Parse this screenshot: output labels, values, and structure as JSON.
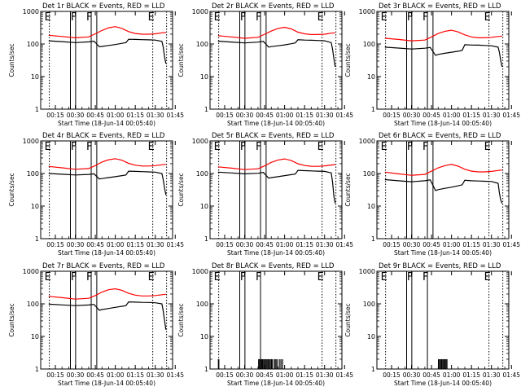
{
  "figure": {
    "ylabel": "Counts/sec",
    "xlabel": "Start Time (18-Jun-14 00:05:40)",
    "time_ticks": [
      "00:15",
      "00:30",
      "00:45",
      "01:00",
      "01:15",
      "01:30",
      "01:45"
    ],
    "log_ticks": [
      "1",
      "10",
      "100",
      "1000"
    ],
    "colors": {
      "events": "#000000",
      "lld": "#ff0000"
    }
  },
  "chart_data": [
    {
      "type": "line",
      "title": "Det 1r BLACK = Events, RED = LLD",
      "x_range_min": [
        4,
        103
      ],
      "y_range": [
        1,
        1000
      ],
      "y_scale": "log",
      "time_markers": [
        {
          "t": 10.5,
          "label": "E"
        },
        {
          "t": 26.3,
          "label": ""
        },
        {
          "t": 30.2,
          "label": "F"
        },
        {
          "t": 41.9,
          "label": "F"
        },
        {
          "t": 46.1,
          "label": ""
        },
        {
          "t": 88.1,
          "label": "E"
        },
        {
          "t": 98.5,
          "label": ""
        }
      ],
      "series": [
        {
          "name": "Events",
          "color": "#000000",
          "t": [
            10,
            20,
            30,
            40,
            44,
            48,
            50,
            55,
            60,
            65,
            68,
            70,
            75,
            80,
            85,
            90,
            95,
            96,
            97,
            98
          ],
          "values": [
            125,
            118,
            110,
            116,
            122,
            82,
            84,
            90,
            96,
            105,
            110,
            140,
            138,
            136,
            134,
            132,
            120,
            80,
            40,
            25
          ]
        },
        {
          "name": "LLD",
          "color": "#ff0000",
          "t": [
            10,
            20,
            30,
            40,
            45,
            50,
            55,
            60,
            65,
            70,
            75,
            80,
            85,
            90,
            95,
            98
          ],
          "values": [
            185,
            170,
            155,
            165,
            205,
            260,
            315,
            340,
            300,
            240,
            210,
            200,
            200,
            205,
            220,
            225
          ]
        }
      ]
    },
    {
      "type": "line",
      "title": "Det 2r BLACK = Events, RED = LLD",
      "x_range_min": [
        4,
        103
      ],
      "y_range": [
        1,
        1000
      ],
      "y_scale": "log",
      "time_markers": [
        {
          "t": 10.5,
          "label": "E"
        },
        {
          "t": 26.3,
          "label": ""
        },
        {
          "t": 30.2,
          "label": "F"
        },
        {
          "t": 41.9,
          "label": "F"
        },
        {
          "t": 46.1,
          "label": ""
        },
        {
          "t": 88.1,
          "label": "E"
        },
        {
          "t": 98.5,
          "label": ""
        }
      ],
      "series": [
        {
          "name": "Events",
          "color": "#000000",
          "t": [
            10,
            20,
            30,
            40,
            44,
            48,
            50,
            55,
            60,
            65,
            68,
            70,
            75,
            80,
            85,
            90,
            95,
            96,
            97,
            98
          ],
          "values": [
            122,
            115,
            108,
            114,
            120,
            80,
            83,
            88,
            94,
            102,
            108,
            135,
            132,
            130,
            128,
            125,
            110,
            70,
            35,
            20
          ]
        },
        {
          "name": "LLD",
          "color": "#ff0000",
          "t": [
            10,
            20,
            30,
            40,
            45,
            50,
            55,
            60,
            65,
            70,
            75,
            80,
            85,
            90,
            95,
            98
          ],
          "values": [
            180,
            165,
            150,
            160,
            200,
            250,
            300,
            325,
            290,
            230,
            205,
            195,
            195,
            200,
            215,
            220
          ]
        }
      ]
    },
    {
      "type": "line",
      "title": "Det 3r BLACK = Events, RED = LLD",
      "x_range_min": [
        4,
        103
      ],
      "y_range": [
        1,
        1000
      ],
      "y_scale": "log",
      "time_markers": [
        {
          "t": 10.5,
          "label": "E"
        },
        {
          "t": 26.3,
          "label": ""
        },
        {
          "t": 30.2,
          "label": "F"
        },
        {
          "t": 41.9,
          "label": "F"
        },
        {
          "t": 46.1,
          "label": ""
        },
        {
          "t": 88.1,
          "label": "E"
        },
        {
          "t": 98.5,
          "label": ""
        }
      ],
      "series": [
        {
          "name": "Events",
          "color": "#000000",
          "t": [
            10,
            20,
            30,
            40,
            44,
            48,
            50,
            55,
            60,
            65,
            68,
            70,
            75,
            80,
            85,
            90,
            95,
            96,
            97,
            98
          ],
          "values": [
            80,
            75,
            70,
            74,
            78,
            45,
            48,
            52,
            56,
            60,
            64,
            95,
            93,
            92,
            90,
            88,
            80,
            55,
            30,
            20
          ]
        },
        {
          "name": "LLD",
          "color": "#ff0000",
          "t": [
            10,
            20,
            30,
            40,
            45,
            50,
            55,
            60,
            65,
            70,
            75,
            80,
            85,
            90,
            95,
            98
          ],
          "values": [
            150,
            138,
            125,
            132,
            165,
            210,
            245,
            265,
            235,
            190,
            165,
            155,
            155,
            160,
            170,
            175
          ]
        }
      ]
    },
    {
      "type": "line",
      "title": "Det 4r BLACK = Events, RED = LLD",
      "x_range_min": [
        4,
        103
      ],
      "y_range": [
        1,
        1000
      ],
      "y_scale": "log",
      "time_markers": [
        {
          "t": 10.5,
          "label": "E"
        },
        {
          "t": 26.3,
          "label": ""
        },
        {
          "t": 30.2,
          "label": "F"
        },
        {
          "t": 41.9,
          "label": "F"
        },
        {
          "t": 46.1,
          "label": ""
        },
        {
          "t": 88.1,
          "label": "E"
        },
        {
          "t": 98.5,
          "label": ""
        }
      ],
      "series": [
        {
          "name": "Events",
          "color": "#000000",
          "t": [
            10,
            20,
            30,
            40,
            44,
            48,
            50,
            55,
            60,
            65,
            68,
            70,
            75,
            80,
            85,
            90,
            95,
            96,
            97,
            98
          ],
          "values": [
            100,
            95,
            90,
            94,
            98,
            68,
            70,
            75,
            80,
            86,
            90,
            118,
            116,
            114,
            112,
            110,
            100,
            65,
            35,
            22
          ]
        },
        {
          "name": "LLD",
          "color": "#ff0000",
          "t": [
            10,
            20,
            30,
            40,
            45,
            50,
            55,
            60,
            65,
            70,
            75,
            80,
            85,
            90,
            95,
            98
          ],
          "values": [
            165,
            150,
            135,
            142,
            175,
            225,
            265,
            285,
            255,
            205,
            180,
            170,
            170,
            175,
            185,
            190
          ]
        }
      ]
    },
    {
      "type": "line",
      "title": "Det 5r BLACK = Events, RED = LLD",
      "x_range_min": [
        4,
        103
      ],
      "y_range": [
        1,
        1000
      ],
      "y_scale": "log",
      "time_markers": [
        {
          "t": 10.5,
          "label": "E"
        },
        {
          "t": 26.3,
          "label": ""
        },
        {
          "t": 30.2,
          "label": "F"
        },
        {
          "t": 41.9,
          "label": "F"
        },
        {
          "t": 46.1,
          "label": ""
        },
        {
          "t": 88.1,
          "label": "E"
        },
        {
          "t": 98.5,
          "label": ""
        }
      ],
      "series": [
        {
          "name": "Events",
          "color": "#000000",
          "t": [
            10,
            20,
            30,
            40,
            44,
            48,
            50,
            55,
            60,
            65,
            68,
            70,
            75,
            80,
            85,
            90,
            95,
            96,
            97,
            98
          ],
          "values": [
            110,
            104,
            98,
            102,
            108,
            72,
            75,
            80,
            86,
            92,
            96,
            125,
            122,
            120,
            118,
            116,
            105,
            55,
            20,
            12
          ]
        },
        {
          "name": "LLD",
          "color": "#ff0000",
          "t": [
            10,
            20,
            30,
            40,
            45,
            50,
            55,
            60,
            65,
            70,
            75,
            80,
            85,
            90,
            95,
            98
          ],
          "values": [
            160,
            146,
            132,
            140,
            172,
            220,
            260,
            280,
            250,
            200,
            176,
            166,
            166,
            172,
            182,
            188
          ]
        }
      ]
    },
    {
      "type": "line",
      "title": "Det 6r BLACK = Events, RED = LLD",
      "x_range_min": [
        4,
        103
      ],
      "y_range": [
        1,
        1000
      ],
      "y_scale": "log",
      "time_markers": [
        {
          "t": 10.5,
          "label": "E"
        },
        {
          "t": 26.3,
          "label": ""
        },
        {
          "t": 30.2,
          "label": "F"
        },
        {
          "t": 41.9,
          "label": "F"
        },
        {
          "t": 46.1,
          "label": ""
        },
        {
          "t": 88.1,
          "label": "E"
        },
        {
          "t": 98.5,
          "label": ""
        }
      ],
      "series": [
        {
          "name": "Events",
          "color": "#000000",
          "t": [
            10,
            20,
            30,
            40,
            44,
            48,
            50,
            55,
            60,
            65,
            68,
            70,
            75,
            80,
            85,
            90,
            95,
            96,
            97,
            98
          ],
          "values": [
            65,
            60,
            56,
            60,
            64,
            30,
            32,
            35,
            38,
            42,
            45,
            62,
            60,
            59,
            58,
            57,
            50,
            25,
            15,
            12
          ]
        },
        {
          "name": "LLD",
          "color": "#ff0000",
          "t": [
            10,
            20,
            30,
            40,
            45,
            50,
            55,
            60,
            65,
            70,
            75,
            80,
            85,
            90,
            95,
            98
          ],
          "values": [
            110,
            98,
            88,
            94,
            118,
            150,
            175,
            190,
            168,
            135,
            118,
            112,
            112,
            116,
            124,
            128
          ]
        }
      ]
    },
    {
      "type": "line",
      "title": "Det 7r BLACK = Events, RED = LLD",
      "x_range_min": [
        4,
        103
      ],
      "y_range": [
        1,
        1000
      ],
      "y_scale": "log",
      "time_markers": [
        {
          "t": 10.5,
          "label": "E"
        },
        {
          "t": 26.3,
          "label": ""
        },
        {
          "t": 30.2,
          "label": "F"
        },
        {
          "t": 41.9,
          "label": "F"
        },
        {
          "t": 46.1,
          "label": ""
        },
        {
          "t": 88.1,
          "label": "E"
        },
        {
          "t": 98.5,
          "label": ""
        }
      ],
      "series": [
        {
          "name": "Events",
          "color": "#000000",
          "t": [
            10,
            20,
            30,
            40,
            44,
            48,
            50,
            55,
            60,
            65,
            68,
            70,
            75,
            80,
            85,
            90,
            95,
            96,
            97,
            98
          ],
          "values": [
            98,
            93,
            88,
            92,
            96,
            64,
            67,
            72,
            78,
            84,
            88,
            115,
            113,
            111,
            110,
            108,
            100,
            60,
            30,
            16
          ]
        },
        {
          "name": "LLD",
          "color": "#ff0000",
          "t": [
            10,
            20,
            30,
            40,
            45,
            50,
            55,
            60,
            65,
            70,
            75,
            80,
            85,
            90,
            95,
            98
          ],
          "values": [
            170,
            155,
            140,
            148,
            180,
            230,
            270,
            290,
            260,
            210,
            185,
            175,
            175,
            180,
            190,
            196
          ]
        }
      ]
    },
    {
      "type": "line",
      "title": "Det 8r BLACK = Events, RED = LLD",
      "x_range_min": [
        4,
        103
      ],
      "y_range": [
        1,
        1000
      ],
      "y_scale": "log",
      "time_markers": [
        {
          "t": 10.5,
          "label": "E"
        },
        {
          "t": 26.3,
          "label": ""
        },
        {
          "t": 30.2,
          "label": "F"
        },
        {
          "t": 41.9,
          "label": "F"
        },
        {
          "t": 88.1,
          "label": "E"
        },
        {
          "t": 98.5,
          "label": ""
        }
      ],
      "series": [
        {
          "name": "Events",
          "color": "#000000",
          "spikes_t": [
            10.3,
            10.6,
            40.5,
            41.2,
            42.0,
            42.8,
            43.5,
            44.3,
            45.1,
            46.0,
            46.8,
            47.6,
            48.5,
            49.3,
            50.2,
            51.0,
            52.5,
            53.4,
            54.3,
            56.0,
            57.2,
            58.4
          ],
          "spike_value": 2
        }
      ]
    },
    {
      "type": "line",
      "title": "Det 9r BLACK = Events, RED = LLD",
      "x_range_min": [
        4,
        103
      ],
      "y_range": [
        1,
        1000
      ],
      "y_scale": "log",
      "time_markers": [
        {
          "t": 10.5,
          "label": "E"
        },
        {
          "t": 26.3,
          "label": ""
        },
        {
          "t": 30.2,
          "label": "F"
        },
        {
          "t": 41.9,
          "label": "F"
        },
        {
          "t": 88.1,
          "label": "E"
        },
        {
          "t": 98.5,
          "label": ""
        }
      ],
      "series": [
        {
          "name": "Events",
          "color": "#000000",
          "spikes_t": [
            50.2,
            51.0,
            51.8,
            52.6,
            53.4,
            54.2,
            55.0,
            55.8,
            56.6
          ],
          "spike_value": 2
        }
      ]
    }
  ]
}
